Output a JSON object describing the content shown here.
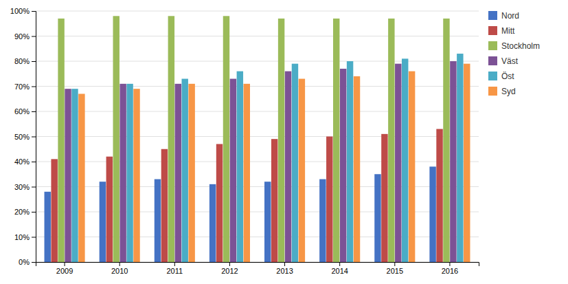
{
  "chart_data": {
    "type": "bar",
    "categories": [
      "2009",
      "2010",
      "2011",
      "2012",
      "2013",
      "2014",
      "2015",
      "2016"
    ],
    "series": [
      {
        "name": "Nord",
        "color": "#4472C4",
        "values": [
          0.28,
          0.32,
          0.33,
          0.31,
          0.32,
          0.33,
          0.35,
          0.38
        ]
      },
      {
        "name": "Mitt",
        "color": "#BE4B48",
        "values": [
          0.41,
          0.42,
          0.45,
          0.47,
          0.49,
          0.5,
          0.51,
          0.53
        ]
      },
      {
        "name": "Stockholm",
        "color": "#9BBB59",
        "values": [
          0.97,
          0.98,
          0.98,
          0.98,
          0.97,
          0.97,
          0.97,
          0.97
        ]
      },
      {
        "name": "Väst",
        "color": "#7C5295",
        "values": [
          0.69,
          0.71,
          0.71,
          0.73,
          0.76,
          0.77,
          0.79,
          0.8
        ]
      },
      {
        "name": "Öst",
        "color": "#4BACC6",
        "values": [
          0.69,
          0.71,
          0.73,
          0.76,
          0.79,
          0.8,
          0.81,
          0.83
        ]
      },
      {
        "name": "Syd",
        "color": "#F79646",
        "values": [
          0.67,
          0.69,
          0.71,
          0.71,
          0.73,
          0.74,
          0.76,
          0.79
        ]
      }
    ],
    "ylim": [
      0,
      1.0
    ],
    "yticks": [
      {
        "value": 0,
        "label": "0%"
      },
      {
        "value": 0.1,
        "label": "10%"
      },
      {
        "value": 0.2,
        "label": "20%"
      },
      {
        "value": 0.3,
        "label": "30%"
      },
      {
        "value": 0.4,
        "label": "40%"
      },
      {
        "value": 0.5,
        "label": "50%"
      },
      {
        "value": 0.6,
        "label": "60%"
      },
      {
        "value": 0.7,
        "label": "70%"
      },
      {
        "value": 0.8,
        "label": "80%"
      },
      {
        "value": 0.9,
        "label": "90%"
      },
      {
        "value": 1.0,
        "label": "100%"
      }
    ],
    "grid": true,
    "legend": "right"
  }
}
